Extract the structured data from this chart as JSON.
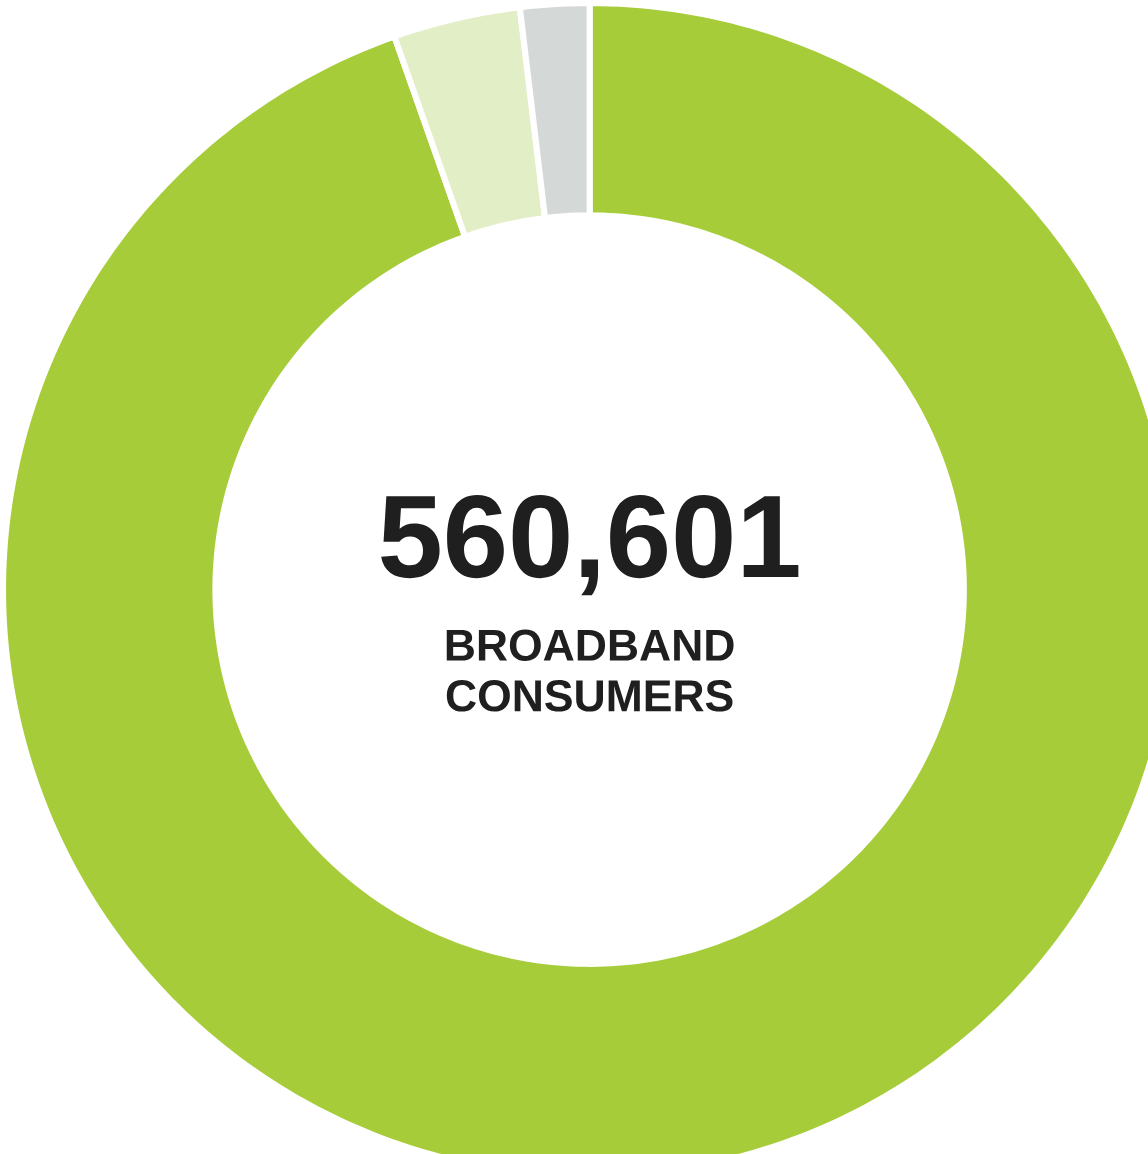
{
  "chart_data": {
    "type": "donut",
    "title": "560,601",
    "subtitle": "BROADBAND CONSUMERS",
    "categories": [
      null,
      null,
      null
    ],
    "values": [
      94.6,
      3.5,
      1.9
    ],
    "colors": [
      "#a6cc3a",
      "#e2eec6",
      "#d4d9d8"
    ]
  }
}
